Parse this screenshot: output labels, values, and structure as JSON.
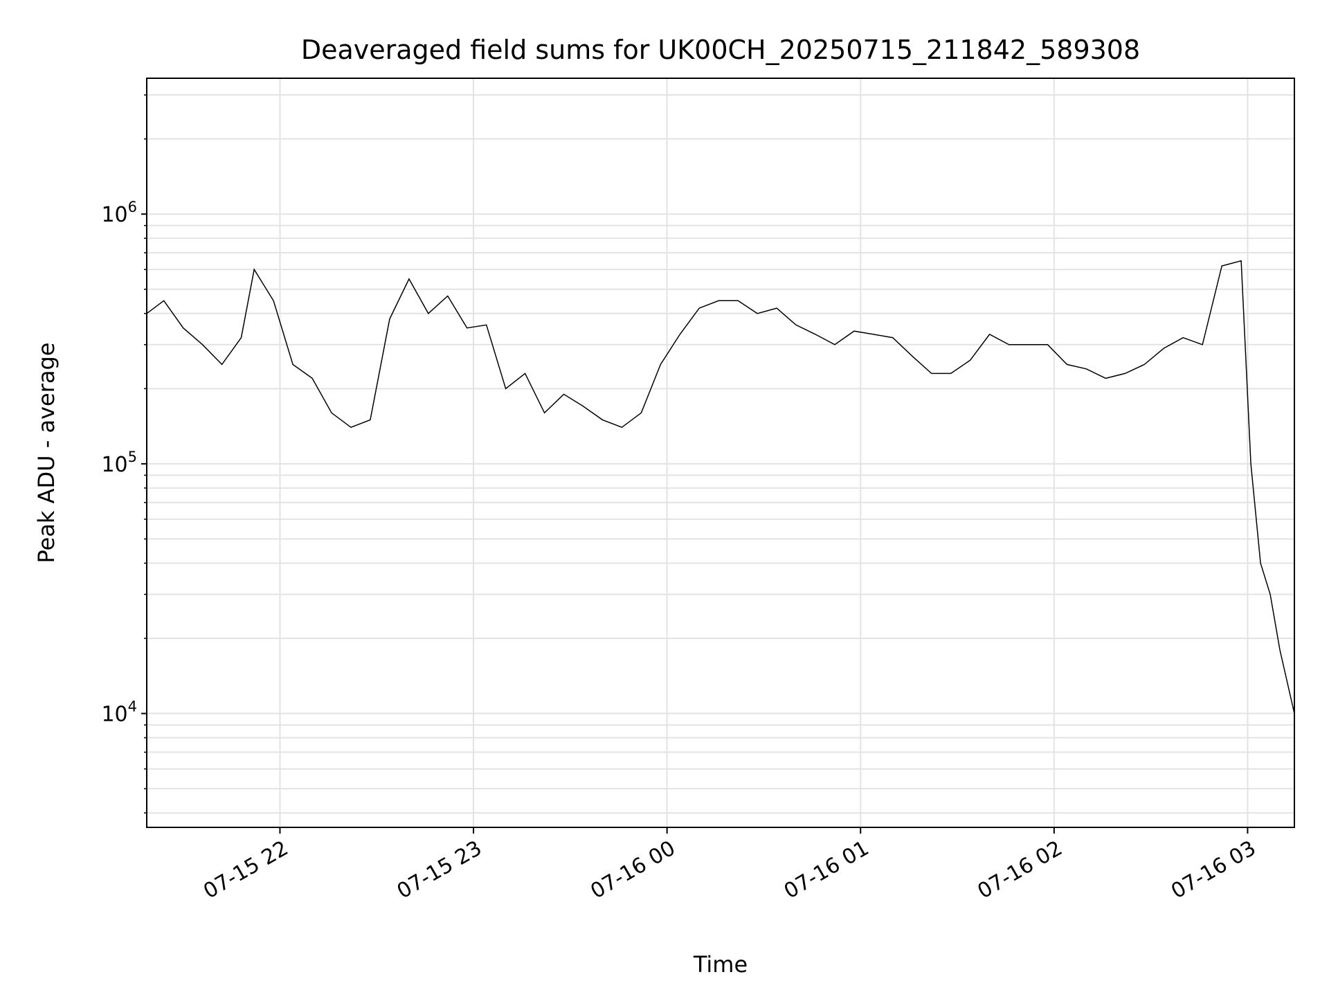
{
  "chart_data": {
    "type": "line",
    "title": "Deaveraged field sums for UK00CH_20250715_211842_589308",
    "xlabel": "Time",
    "ylabel": "Peak ADU - average",
    "yscale": "log",
    "ylim": [
      3500,
      3500000
    ],
    "xlim": [
      "2025-07-15T21:18:42",
      "2025-07-16T03:14:30"
    ],
    "xticks": [
      {
        "t": "2025-07-15T22:00:00",
        "label": "07-15 22"
      },
      {
        "t": "2025-07-15T23:00:00",
        "label": "07-15 23"
      },
      {
        "t": "2025-07-16T00:00:00",
        "label": "07-16 00"
      },
      {
        "t": "2025-07-16T01:00:00",
        "label": "07-16 01"
      },
      {
        "t": "2025-07-16T02:00:00",
        "label": "07-16 02"
      },
      {
        "t": "2025-07-16T03:00:00",
        "label": "07-16 03"
      }
    ],
    "yticks": [
      {
        "value": 10000,
        "base": "10",
        "exp": "4"
      },
      {
        "value": 100000,
        "base": "10",
        "exp": "5"
      },
      {
        "value": 1000000,
        "base": "10",
        "exp": "6"
      }
    ],
    "grid": true,
    "line_color": "#000000",
    "series": [
      {
        "x": [
          "2025-07-15T21:18:42",
          "2025-07-15T21:24:00",
          "2025-07-15T21:30:00",
          "2025-07-15T21:36:00",
          "2025-07-15T21:42:00",
          "2025-07-15T21:48:00",
          "2025-07-15T21:52:00",
          "2025-07-15T21:58:00",
          "2025-07-15T22:04:00",
          "2025-07-15T22:10:00",
          "2025-07-15T22:16:00",
          "2025-07-15T22:22:00",
          "2025-07-15T22:28:00",
          "2025-07-15T22:34:00",
          "2025-07-15T22:40:00",
          "2025-07-15T22:46:00",
          "2025-07-15T22:52:00",
          "2025-07-15T22:58:00",
          "2025-07-15T23:04:00",
          "2025-07-15T23:10:00",
          "2025-07-15T23:16:00",
          "2025-07-15T23:22:00",
          "2025-07-15T23:28:00",
          "2025-07-15T23:34:00",
          "2025-07-15T23:40:00",
          "2025-07-15T23:46:00",
          "2025-07-15T23:52:00",
          "2025-07-15T23:58:00",
          "2025-07-16T00:04:00",
          "2025-07-16T00:10:00",
          "2025-07-16T00:16:00",
          "2025-07-16T00:22:00",
          "2025-07-16T00:28:00",
          "2025-07-16T00:34:00",
          "2025-07-16T00:40:00",
          "2025-07-16T00:46:00",
          "2025-07-16T00:52:00",
          "2025-07-16T00:58:00",
          "2025-07-16T01:04:00",
          "2025-07-16T01:10:00",
          "2025-07-16T01:16:00",
          "2025-07-16T01:22:00",
          "2025-07-16T01:28:00",
          "2025-07-16T01:34:00",
          "2025-07-16T01:40:00",
          "2025-07-16T01:46:00",
          "2025-07-16T01:52:00",
          "2025-07-16T01:58:00",
          "2025-07-16T02:04:00",
          "2025-07-16T02:10:00",
          "2025-07-16T02:16:00",
          "2025-07-16T02:22:00",
          "2025-07-16T02:28:00",
          "2025-07-16T02:34:00",
          "2025-07-16T02:40:00",
          "2025-07-16T02:46:00",
          "2025-07-16T02:52:00",
          "2025-07-16T02:58:00",
          "2025-07-16T03:01:00",
          "2025-07-16T03:04:00",
          "2025-07-16T03:07:00",
          "2025-07-16T03:10:00",
          "2025-07-16T03:14:30"
        ],
        "values": [
          400000,
          450000,
          350000,
          300000,
          250000,
          320000,
          600000,
          450000,
          250000,
          220000,
          160000,
          140000,
          150000,
          380000,
          550000,
          400000,
          470000,
          350000,
          360000,
          200000,
          230000,
          160000,
          190000,
          170000,
          150000,
          140000,
          160000,
          250000,
          330000,
          420000,
          450000,
          450000,
          400000,
          420000,
          360000,
          330000,
          300000,
          340000,
          330000,
          320000,
          270000,
          230000,
          230000,
          260000,
          330000,
          300000,
          300000,
          300000,
          250000,
          240000,
          220000,
          230000,
          250000,
          290000,
          320000,
          300000,
          620000,
          650000,
          100000,
          40000,
          30000,
          18000,
          10000
        ]
      }
    ]
  }
}
